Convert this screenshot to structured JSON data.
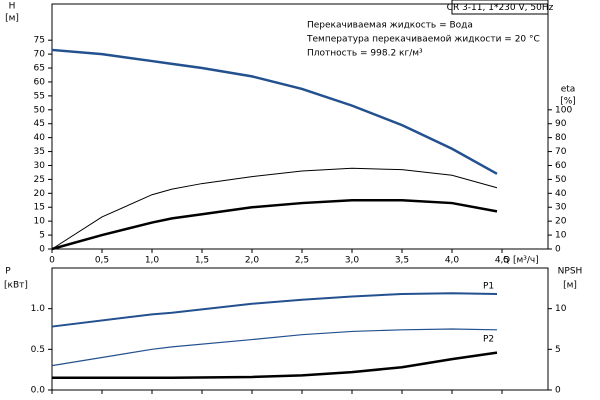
{
  "chart_data": [
    {
      "type": "line",
      "title": "CR 3-11, 1*230 V, 50Hz",
      "annotations": [
        "Перекачиваемая жидкость = Вода",
        "Температура перекачиваемой жидкости = 20 °C",
        "Плотность = 998.2 кг/м³"
      ],
      "xlabel": "Q [м³/ч]",
      "ylabel": "H",
      "yunit": "[м]",
      "y2label": "eta",
      "y2unit": "[%]",
      "x": [
        0,
        0.5,
        1.0,
        1.2,
        1.5,
        2.0,
        2.5,
        3.0,
        3.5,
        4.0,
        4.45
      ],
      "series": [
        {
          "color": "#23508f",
          "width": 2.5,
          "values": [
            71.5,
            70,
            67.5,
            66.5,
            65,
            62,
            57.5,
            51.5,
            44.5,
            36,
            27
          ]
        },
        {
          "color": "#000000",
          "width": 1,
          "axis": "y2",
          "values": [
            0,
            23,
            39,
            43,
            47,
            52,
            56,
            58,
            57,
            53,
            44
          ]
        },
        {
          "color": "#000000",
          "width": 2.5,
          "axis": "y2",
          "values": [
            0,
            10,
            19,
            22,
            25,
            30,
            33,
            35,
            35,
            33,
            27
          ]
        }
      ],
      "xlim": [
        0,
        4.96
      ],
      "xticks": [
        0,
        {
          "value": 0.5,
          "label": "0,5"
        },
        {
          "value": 1,
          "label": "1,0"
        },
        {
          "value": 1.5,
          "label": "1,5"
        },
        {
          "value": 2,
          "label": "2,0"
        },
        {
          "value": 2.5,
          "label": "2,5"
        },
        {
          "value": 3,
          "label": "3,0"
        },
        {
          "value": 3.5,
          "label": "3,5"
        },
        {
          "value": 4,
          "label": "4,0"
        },
        {
          "value": 4.5,
          "label": "4,5"
        }
      ],
      "ylim": [
        0,
        88
      ],
      "yticks": [
        0,
        5,
        10,
        15,
        20,
        25,
        30,
        35,
        40,
        45,
        50,
        55,
        60,
        65,
        70,
        75
      ],
      "y2lim": [
        0,
        176
      ],
      "y2ticks": [
        0,
        10,
        20,
        30,
        40,
        50,
        60,
        70,
        80,
        90,
        100
      ]
    },
    {
      "type": "line",
      "ylabel": "P",
      "yunit": "[кВт]",
      "y2label": "NPSH",
      "y2unit": "[м]",
      "x": [
        0,
        1.0,
        1.2,
        2.0,
        2.5,
        3.0,
        3.5,
        4.0,
        4.45
      ],
      "series": [
        {
          "name": "P1",
          "color": "#23508f",
          "width": 2,
          "values": [
            0.78,
            0.93,
            0.95,
            1.06,
            1.11,
            1.15,
            1.18,
            1.19,
            1.18
          ]
        },
        {
          "name": "P2",
          "color": "#23508f",
          "width": 1.2,
          "values": [
            0.3,
            0.5,
            0.53,
            0.62,
            0.68,
            0.72,
            0.74,
            0.75,
            0.74
          ]
        },
        {
          "color": "#000000",
          "width": 2.5,
          "axis": "y2",
          "values": [
            1.5,
            1.5,
            1.5,
            1.6,
            1.8,
            2.2,
            2.8,
            3.8,
            4.6
          ]
        }
      ],
      "xlim": [
        0,
        4.96
      ],
      "xticks": [
        0,
        0.5,
        1,
        1.5,
        2,
        2.5,
        3,
        3.5,
        4,
        4.5
      ],
      "ylim": [
        0,
        1.5
      ],
      "yticks": [
        {
          "value": 0,
          "label": "0.0"
        },
        {
          "value": 0.5,
          "label": "0.5"
        },
        {
          "value": 1,
          "label": "1.0"
        }
      ],
      "y2lim": [
        0,
        15
      ],
      "y2ticks": [
        0,
        5,
        10
      ]
    }
  ]
}
